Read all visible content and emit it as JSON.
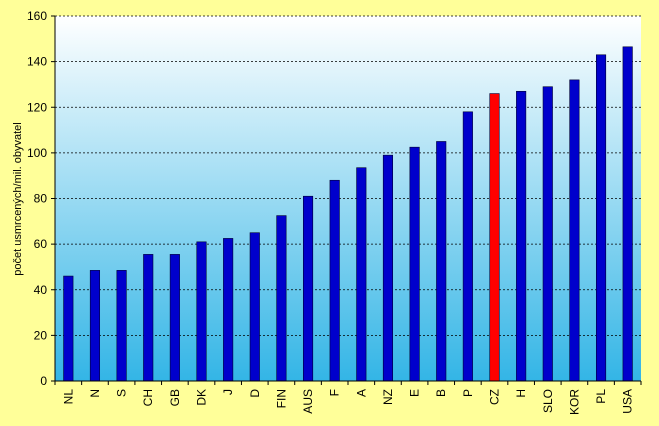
{
  "chart_data": {
    "type": "bar",
    "title": "",
    "xlabel": "",
    "ylabel": "počet usmrcených/mil. obyvatel",
    "ylim": [
      0,
      160
    ],
    "yticks": [
      0,
      20,
      40,
      60,
      80,
      100,
      120,
      140,
      160
    ],
    "categories": [
      "NL",
      "N",
      "S",
      "CH",
      "GB",
      "DK",
      "J",
      "D",
      "FIN",
      "AUS",
      "F",
      "A",
      "NZ",
      "E",
      "B",
      "P",
      "CZ",
      "H",
      "SLO",
      "KOR",
      "PL",
      "USA"
    ],
    "values": [
      46,
      48.5,
      48.5,
      55.5,
      55.5,
      61,
      62.5,
      65,
      72.5,
      81,
      88,
      93.5,
      99,
      102.5,
      105,
      118,
      126,
      127,
      129,
      132,
      143,
      146.5
    ],
    "highlight_category": "CZ",
    "grid": true,
    "legend": "none",
    "colors": {
      "bar": "#0000cc",
      "highlight": "#ff0000",
      "bar_edge": "#000033",
      "outer_background": "#ffff99",
      "plot_gradient_top": "#ffffff",
      "plot_gradient_bottom": "#33b5e6",
      "gridline": "#000000"
    }
  }
}
